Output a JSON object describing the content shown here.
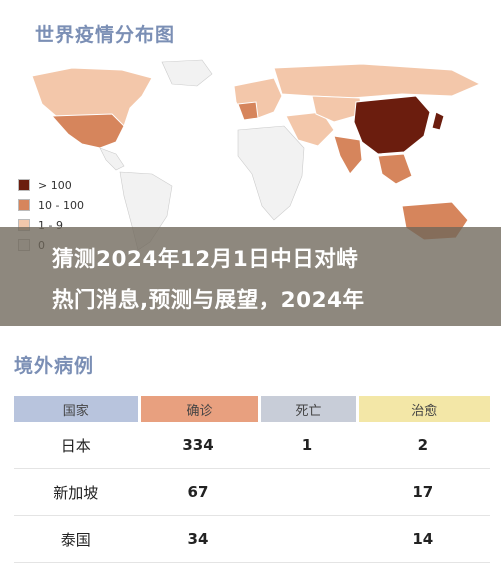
{
  "map": {
    "title": "世界疫情分布图",
    "legend": [
      {
        "label": "> 100",
        "color": "#6b1d0e"
      },
      {
        "label": "10 - 100",
        "color": "#d6855c"
      },
      {
        "label": "1 - 9",
        "color": "#f3c7aa"
      },
      {
        "label": "0",
        "color": "#f2f2f2"
      }
    ]
  },
  "banner": {
    "line1": "猜测2024年12月1日中日对峙",
    "line2": "热门消息,预测与展望，2024年"
  },
  "cases": {
    "title": "境外病例",
    "headers": [
      "国家",
      "确诊",
      "死亡",
      "治愈"
    ],
    "rows": [
      {
        "country": "日本",
        "confirmed": "334",
        "deaths": "1",
        "recovered": "2"
      },
      {
        "country": "新加坡",
        "confirmed": "67",
        "deaths": "",
        "recovered": "17"
      },
      {
        "country": "泰国",
        "confirmed": "34",
        "deaths": "",
        "recovered": "14"
      }
    ]
  }
}
